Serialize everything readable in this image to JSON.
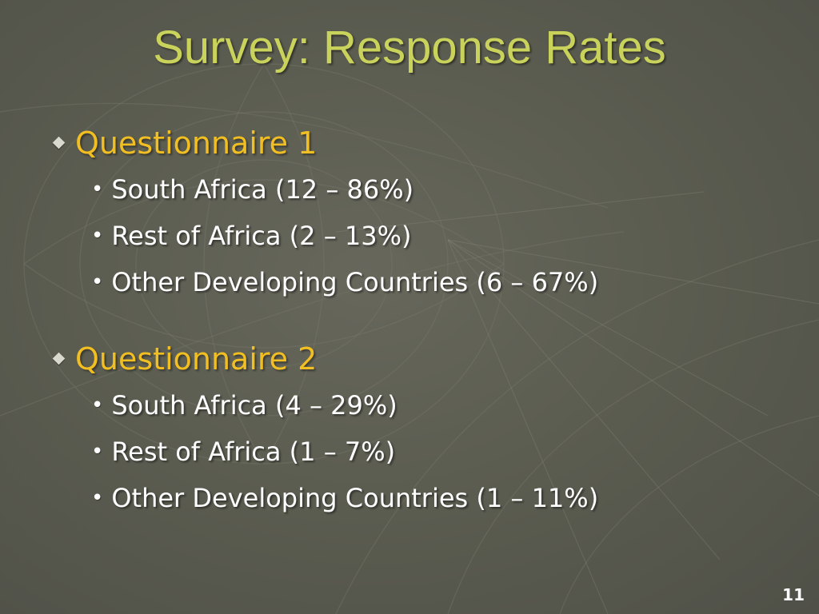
{
  "slide": {
    "title": "Survey: Response Rates",
    "page_number": "11",
    "colors": {
      "background": "#5c5d51",
      "title": "#c9d25a",
      "heading": "#f2bf22",
      "text": "#ffffff"
    },
    "sections": [
      {
        "heading": "Questionnaire 1",
        "items": [
          "South Africa (12 – 86%)",
          "Rest of Africa (2 – 13%)",
          "Other Developing Countries (6 – 67%)"
        ]
      },
      {
        "heading": "Questionnaire 2",
        "items": [
          "South Africa (4 – 29%)",
          "Rest of Africa (1 – 7%)",
          "Other Developing Countries (1 – 11%)"
        ]
      }
    ]
  }
}
